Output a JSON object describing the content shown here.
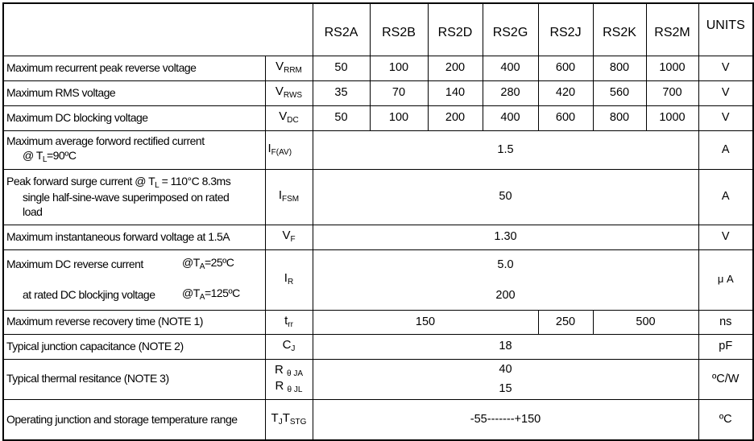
{
  "header": {
    "parts": [
      "RS2A",
      "RS2B",
      "RS2D",
      "RS2G",
      "RS2J",
      "RS2K",
      "RS2M"
    ],
    "units": "UNITS"
  },
  "rows": {
    "vrrm": {
      "label": "Maximum recurrent peak reverse voltage",
      "sym": "V",
      "sub": "RRM",
      "values": [
        "50",
        "100",
        "200",
        "400",
        "600",
        "800",
        "1000"
      ],
      "unit": "V"
    },
    "vrms": {
      "label": "Maximum RMS voltage",
      "sym": "V",
      "sub": "RWS",
      "values": [
        "35",
        "70",
        "140",
        "280",
        "420",
        "560",
        "700"
      ],
      "unit": "V"
    },
    "vdc": {
      "label": "Maximum DC blocking voltage",
      "sym": "V",
      "sub": "DC",
      "values": [
        "50",
        "100",
        "200",
        "400",
        "600",
        "800",
        "1000"
      ],
      "unit": "V"
    },
    "ifav": {
      "label1": "Maximum average forword rectified current",
      "label2a": "@ T",
      "label2sub": "L",
      "label2b": "=90ºC",
      "sym": "I",
      "sub": "F(AV)",
      "value": "1.5",
      "unit": "A"
    },
    "ifsm": {
      "label1a": "Peak forward surge current @ T",
      "label1sub": "L",
      "label1b": " = 110°C 8.3ms",
      "label2": "single half-sine-wave superimposed on rated",
      "label3": "load",
      "sym": "I",
      "sub": "FSM",
      "value": "50",
      "unit": "A"
    },
    "vf": {
      "label": "Maximum instantaneous forward voltage at 1.5A",
      "sym": "V",
      "sub": "F",
      "value": "1.30",
      "unit": "V"
    },
    "ir": {
      "label1": "Maximum DC reverse current",
      "cond1a": "@T",
      "cond1sub": "A",
      "cond1b": "=25ºC",
      "label2": "at rated DC blockjing voltage",
      "cond2a": "@T",
      "cond2sub": "A",
      "cond2b": "=125ºC",
      "sym": "I",
      "sub": "R",
      "value1": "5.0",
      "value2": "200",
      "unit": "μ A"
    },
    "trr": {
      "label": "Maximum reverse recovery time (NOTE 1)",
      "sym": "t",
      "sub": "rr",
      "values": [
        "150",
        "250",
        "500"
      ],
      "unit": "ns"
    },
    "cj": {
      "label": "Typical junction capacitance (NOTE 2)",
      "sym": "C",
      "sub": "J",
      "value": "18",
      "unit": "pF"
    },
    "rth": {
      "label": "Typical thermal resitance (NOTE 3)",
      "sym1": "R",
      "sub1": "θ JA",
      "sym2": "R",
      "sub2": "θ JL",
      "value1": "40",
      "value2": "15",
      "unit": "ºC/W"
    },
    "tj": {
      "label": "Operating junction and storage temperature range",
      "sym1": "T",
      "sub1": "J",
      "sym2": "T",
      "sub2": "STG",
      "value": "-55-------+150",
      "unit": "ºC"
    }
  }
}
